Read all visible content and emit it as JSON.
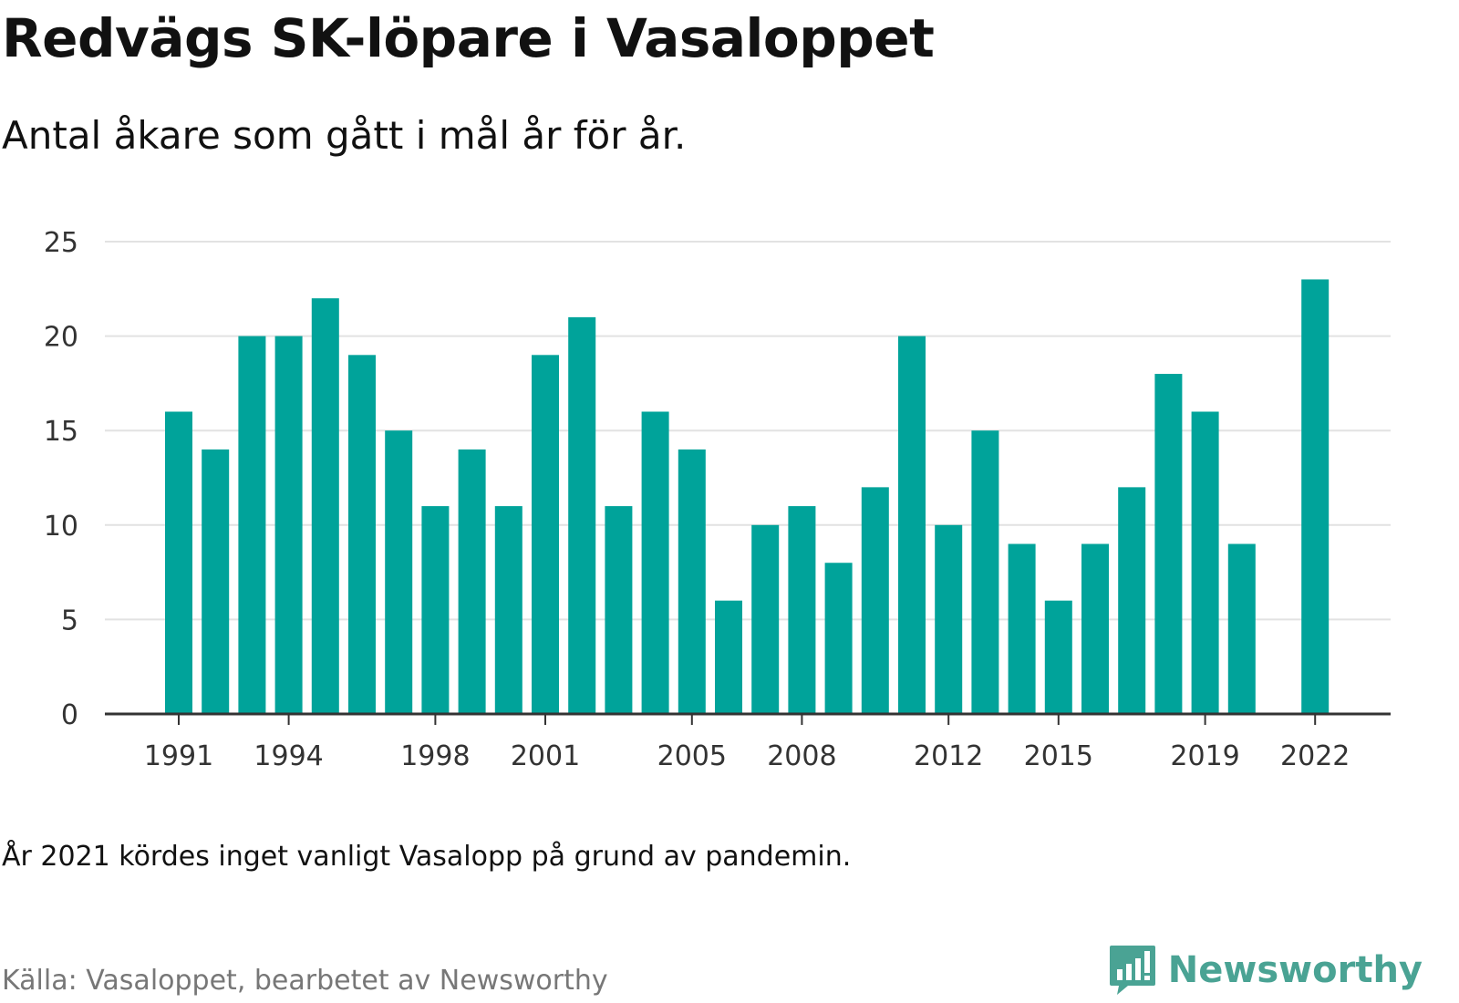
{
  "colors": {
    "bar": "#00a39a",
    "grid": "#e2e2e2",
    "axis": "#333333",
    "brand": "#4aa394"
  },
  "title": "Redvägs SK-löpare i Vasaloppet",
  "subtitle": "Antal åkare som gått i mål år för år.",
  "note": "År 2021 kördes inget vanligt Vasalopp på grund av pandemin.",
  "source": "Källa: Vasaloppet, bearbetet av Newsworthy",
  "brand": {
    "name": "Newsworthy",
    "icon": "bar-chart-speech-bubble-icon"
  },
  "chart_data": {
    "type": "bar",
    "x": [
      1991,
      1992,
      1993,
      1994,
      1995,
      1996,
      1997,
      1998,
      1999,
      2000,
      2001,
      2002,
      2003,
      2004,
      2005,
      2006,
      2007,
      2008,
      2009,
      2010,
      2011,
      2012,
      2013,
      2014,
      2015,
      2016,
      2017,
      2018,
      2019,
      2020,
      2021,
      2022
    ],
    "values": [
      16,
      14,
      20,
      20,
      22,
      19,
      15,
      11,
      14,
      11,
      19,
      21,
      11,
      16,
      14,
      6,
      10,
      11,
      8,
      12,
      20,
      10,
      15,
      9,
      6,
      9,
      12,
      18,
      16,
      9,
      null,
      23
    ],
    "x_tick_labels": [
      "1991",
      "1994",
      "1998",
      "2001",
      "2005",
      "2008",
      "2012",
      "2015",
      "2019",
      "2022"
    ],
    "y_ticks": [
      0,
      5,
      10,
      15,
      20,
      25
    ],
    "ylim": [
      0,
      25
    ],
    "grid": true,
    "xlabel": "",
    "ylabel": ""
  }
}
